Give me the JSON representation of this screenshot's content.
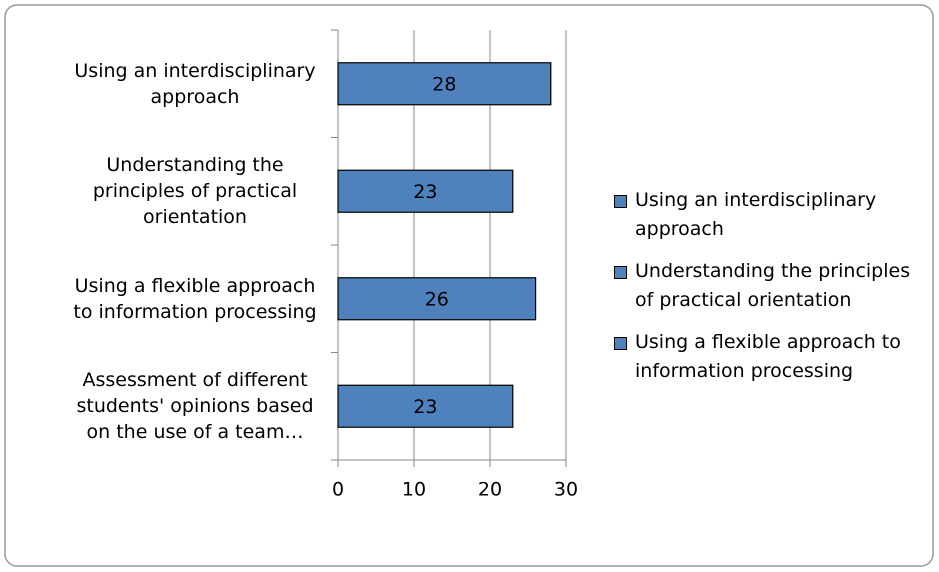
{
  "chart_data": {
    "type": "bar",
    "orientation": "horizontal",
    "categories": [
      "Using an interdisciplinary approach",
      "Understanding the principles of practical orientation",
      "Using a flexible approach to information processing",
      "Assessment of different students' opinions based on the use of a team…"
    ],
    "values": [
      28,
      23,
      26,
      23
    ],
    "color": "#4f81bd",
    "xlim": [
      0,
      30
    ],
    "xticks": [
      0,
      10,
      20,
      30
    ],
    "grid": true,
    "legend": [
      "Using an interdisciplinary approach",
      "Understanding the principles of practical orientation",
      "Using a flexible approach to information processing"
    ],
    "legend_position": "right"
  }
}
